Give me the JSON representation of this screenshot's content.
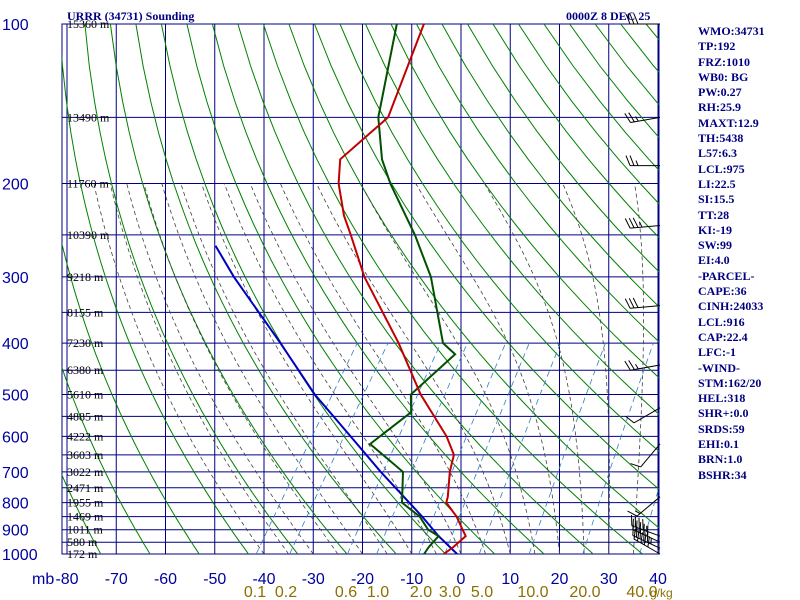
{
  "header": {
    "title": "URRR (34731) Sounding",
    "time": "0000Z  8 DEC 25"
  },
  "indices": [
    "WMO:34731",
    "TP:192",
    "FRZ:1010",
    "WB0: BG",
    "PW:0.27",
    "RH:25.9",
    "MAXT:12.9",
    "TH:5438",
    "L57:6.3",
    "LCL:975",
    "LI:22.5",
    "SI:15.5",
    "TT:28",
    "KI:-19",
    "SW:99",
    "EI:4.0",
    "-PARCEL-",
    "CAPE:36",
    "CINH:24033",
    "LCL:916",
    "CAP:22.4",
    "LFC:-1",
    "-WIND-",
    "STM:162/20",
    "HEL:318",
    "SHR+:0.0",
    "SRDS:59",
    "EHI:0.1",
    "BRN:1.0",
    "BSHR:34"
  ],
  "colors": {
    "grid": "#000080",
    "axis_text": "#0000a0",
    "temperature": "#c00000",
    "dewpoint": "#005000",
    "parcel": "#0000c0",
    "dry_adiabat": "#008000",
    "moist_adiabat": "#404040",
    "mixing_ratio": "#3080c0",
    "mixing_ratio_labels": "#8a7000"
  },
  "chart_data": {
    "type": "skew-t log-p sounding",
    "y_axis": {
      "ticks": [
        100,
        200,
        300,
        400,
        500,
        600,
        700,
        800,
        900,
        1000
      ],
      "unit_label": "mb",
      "scale": "log"
    },
    "x_axis": {
      "ticks": [
        -80,
        -70,
        -60,
        -50,
        -40,
        -30,
        -20,
        -10,
        0,
        10,
        20,
        30,
        40
      ]
    },
    "height_labels": [
      {
        "p": 100,
        "label": "15360 m"
      },
      {
        "p": 150,
        "label": "13490 m"
      },
      {
        "p": 200,
        "label": "11760 m"
      },
      {
        "p": 250,
        "label": "10390 m"
      },
      {
        "p": 300,
        "label": "9218 m"
      },
      {
        "p": 350,
        "label": "8155 m"
      },
      {
        "p": 400,
        "label": "7230 m"
      },
      {
        "p": 450,
        "label": "6380 m"
      },
      {
        "p": 500,
        "label": "5610 m"
      },
      {
        "p": 550,
        "label": "4885 m"
      },
      {
        "p": 600,
        "label": "4222 m"
      },
      {
        "p": 650,
        "label": "3603 m"
      },
      {
        "p": 700,
        "label": "3022 m"
      },
      {
        "p": 750,
        "label": "2471 m"
      },
      {
        "p": 800,
        "label": "1955 m"
      },
      {
        "p": 850,
        "label": "1469 m"
      },
      {
        "p": 900,
        "label": "1011 m"
      },
      {
        "p": 950,
        "label": "580 m"
      },
      {
        "p": 1000,
        "label": "172 m"
      }
    ],
    "mixing_ratio_labels": [
      {
        "w": 0.1,
        "label": "0.1"
      },
      {
        "w": 0.2,
        "label": "0.2"
      },
      {
        "w": 0.6,
        "label": "0.6"
      },
      {
        "w": 1.0,
        "label": "1.0"
      },
      {
        "w": 2.0,
        "label": "2.0"
      },
      {
        "w": 3.0,
        "label": "3.0"
      },
      {
        "w": 5.0,
        "label": "5.0"
      },
      {
        "w": 10.0,
        "label": "10.0"
      },
      {
        "w": 20.0,
        "label": "20.0"
      },
      {
        "w": 40.0,
        "label": "40.0"
      }
    ],
    "mixing_ratio_unit": "g/kg",
    "temperature": [
      {
        "p": 1015,
        "t": -2.2
      },
      {
        "p": 1000,
        "t": -3.5
      },
      {
        "p": 970,
        "t": -2.5
      },
      {
        "p": 925,
        "t": -1.5
      },
      {
        "p": 900,
        "t": -3.0
      },
      {
        "p": 850,
        "t": -6.0
      },
      {
        "p": 800,
        "t": -10.0
      },
      {
        "p": 780,
        "t": -10.5
      },
      {
        "p": 700,
        "t": -13.5
      },
      {
        "p": 650,
        "t": -15.0
      },
      {
        "p": 600,
        "t": -19.0
      },
      {
        "p": 500,
        "t": -30.0
      },
      {
        "p": 400,
        "t": -41.5
      },
      {
        "p": 300,
        "t": -57.5
      },
      {
        "p": 250,
        "t": -66.0
      },
      {
        "p": 230,
        "t": -70.0
      },
      {
        "p": 200,
        "t": -75.5
      },
      {
        "p": 180,
        "t": -78.5
      },
      {
        "p": 150,
        "t": -74.5
      },
      {
        "p": 100,
        "t": -80.0
      }
    ],
    "dewpoint": [
      {
        "p": 1000,
        "t": -7.5
      },
      {
        "p": 970,
        "t": -7.5
      },
      {
        "p": 925,
        "t": -7.0
      },
      {
        "p": 900,
        "t": -10.0
      },
      {
        "p": 850,
        "t": -13.5
      },
      {
        "p": 800,
        "t": -19.0
      },
      {
        "p": 700,
        "t": -23.0
      },
      {
        "p": 620,
        "t": -33.5
      },
      {
        "p": 540,
        "t": -29.5
      },
      {
        "p": 500,
        "t": -32.0
      },
      {
        "p": 420,
        "t": -28.5
      },
      {
        "p": 400,
        "t": -32.5
      },
      {
        "p": 300,
        "t": -44.0
      },
      {
        "p": 250,
        "t": -53.0
      },
      {
        "p": 200,
        "t": -65.0
      },
      {
        "p": 180,
        "t": -70.0
      },
      {
        "p": 150,
        "t": -76.5
      },
      {
        "p": 100,
        "t": -85.5
      }
    ],
    "parcel": [
      {
        "p": 1015,
        "t": 0.5
      },
      {
        "p": 1000,
        "t": -0.8
      },
      {
        "p": 925,
        "t": -7.0
      },
      {
        "p": 850,
        "t": -13.0
      },
      {
        "p": 700,
        "t": -27.5
      },
      {
        "p": 600,
        "t": -38.5
      },
      {
        "p": 500,
        "t": -51.5
      },
      {
        "p": 400,
        "t": -65.5
      },
      {
        "p": 300,
        "t": -84.0
      },
      {
        "p": 262,
        "t": -92.0
      }
    ],
    "wind_barbs": [
      {
        "p": 1000,
        "dir": 300,
        "spd": 50
      },
      {
        "p": 975,
        "dir": 295,
        "spd": 55
      },
      {
        "p": 950,
        "dir": 295,
        "spd": 50
      },
      {
        "p": 925,
        "dir": 290,
        "spd": 45
      },
      {
        "p": 780,
        "dir": 230,
        "spd": 15
      },
      {
        "p": 620,
        "dir": 220,
        "spd": 10
      },
      {
        "p": 530,
        "dir": 240,
        "spd": 10
      },
      {
        "p": 440,
        "dir": 260,
        "spd": 25
      },
      {
        "p": 340,
        "dir": 265,
        "spd": 30
      },
      {
        "p": 240,
        "dir": 265,
        "spd": 35
      },
      {
        "p": 185,
        "dir": 270,
        "spd": 25
      },
      {
        "p": 150,
        "dir": 260,
        "spd": 25
      },
      {
        "p": 100,
        "dir": 270,
        "spd": 30
      }
    ]
  }
}
